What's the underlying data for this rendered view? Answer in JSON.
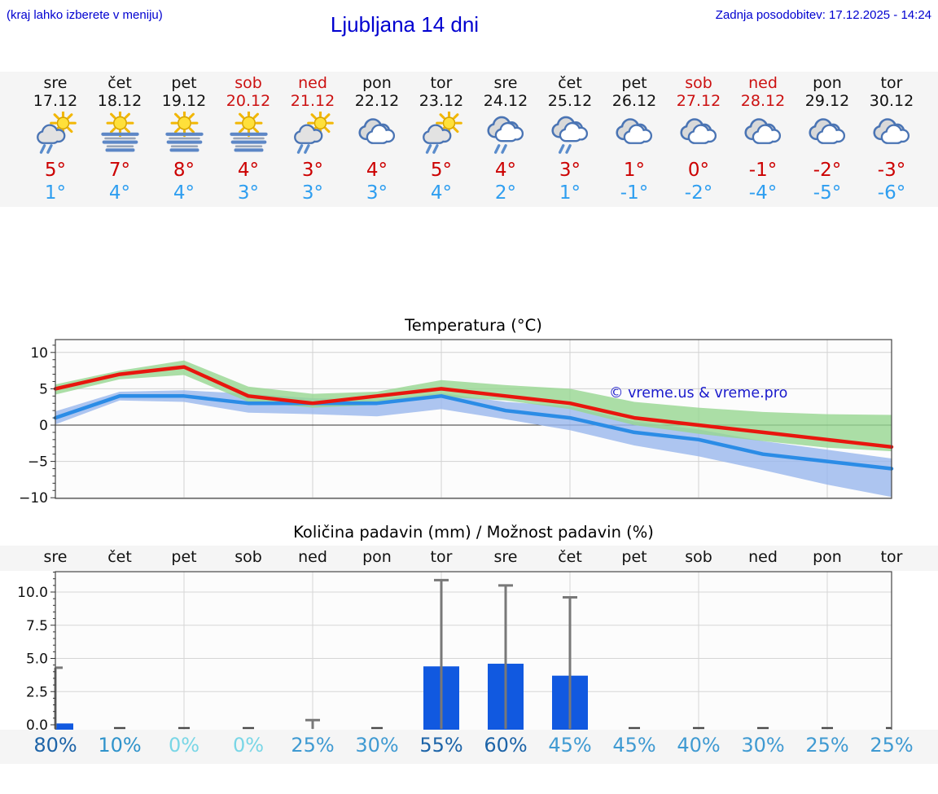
{
  "header": {
    "hint": "(kraj lahko izberete v meniju)",
    "title": "Ljubljana 14 dni",
    "updated": "Zadnja posodobitev: 17.12.2025 - 14:24"
  },
  "forecast_days": [
    {
      "name": "sre",
      "date": "17.12",
      "icon": "sun-rain-cloud",
      "hi": "5°",
      "lo": "1°",
      "holiday": false
    },
    {
      "name": "čet",
      "date": "18.12",
      "icon": "sun-fog",
      "hi": "7°",
      "lo": "4°",
      "holiday": false
    },
    {
      "name": "pet",
      "date": "19.12",
      "icon": "sun-fog",
      "hi": "8°",
      "lo": "4°",
      "holiday": false
    },
    {
      "name": "sob",
      "date": "20.12",
      "icon": "sun-fog",
      "hi": "4°",
      "lo": "3°",
      "holiday": true
    },
    {
      "name": "ned",
      "date": "21.12",
      "icon": "sun-rain-cloud",
      "hi": "3°",
      "lo": "3°",
      "holiday": true
    },
    {
      "name": "pon",
      "date": "22.12",
      "icon": "cloudy",
      "hi": "4°",
      "lo": "3°",
      "holiday": false
    },
    {
      "name": "tor",
      "date": "23.12",
      "icon": "sun-rain-cloud",
      "hi": "5°",
      "lo": "4°",
      "holiday": false
    },
    {
      "name": "sre",
      "date": "24.12",
      "icon": "cloud-rain",
      "hi": "4°",
      "lo": "2°",
      "holiday": false
    },
    {
      "name": "čet",
      "date": "25.12",
      "icon": "cloud-rain",
      "hi": "3°",
      "lo": "1°",
      "holiday": false
    },
    {
      "name": "pet",
      "date": "26.12",
      "icon": "cloudy",
      "hi": "1°",
      "lo": "-1°",
      "holiday": false
    },
    {
      "name": "sob",
      "date": "27.12",
      "icon": "cloudy",
      "hi": "0°",
      "lo": "-2°",
      "holiday": true
    },
    {
      "name": "ned",
      "date": "28.12",
      "icon": "cloudy",
      "hi": "-1°",
      "lo": "-4°",
      "holiday": true
    },
    {
      "name": "pon",
      "date": "29.12",
      "icon": "cloudy",
      "hi": "-2°",
      "lo": "-5°",
      "holiday": false
    },
    {
      "name": "tor",
      "date": "30.12",
      "icon": "cloudy",
      "hi": "-3°",
      "lo": "-6°",
      "holiday": false
    }
  ],
  "chart_data": [
    {
      "type": "line",
      "title": "Temperatura (°C)",
      "categories": [
        "17.12",
        "18.12",
        "19.12",
        "20.12",
        "21.12",
        "22.12",
        "23.12",
        "24.12",
        "25.12",
        "26.12",
        "27.12",
        "28.12",
        "29.12",
        "30.12"
      ],
      "ylim": [
        -10.5,
        11.8
      ],
      "yticks": [
        {
          "v": 10,
          "label": "10"
        },
        {
          "v": 5,
          "label": "5"
        },
        {
          "v": 0,
          "label": "0"
        },
        {
          "v": -5,
          "label": "−5"
        },
        {
          "v": -10,
          "label": "−10"
        }
      ],
      "grid": true,
      "annotation": "© vreme.us & vreme.pro",
      "series": [
        {
          "name": "max_temp",
          "color": "#e8160e",
          "band_color": "#96d690",
          "values": [
            5,
            7,
            8,
            4,
            3,
            4,
            5,
            4,
            3,
            1,
            0,
            -1,
            -2,
            -3
          ],
          "band_upper": [
            5.6,
            7.5,
            8.9,
            5.3,
            4.3,
            4.6,
            6.2,
            5.5,
            5.0,
            3.2,
            2.4,
            1.8,
            1.5,
            1.4
          ],
          "band_lower": [
            4.2,
            6.3,
            6.9,
            3.2,
            2.4,
            2.8,
            3.9,
            3.4,
            2.2,
            0.0,
            -1.2,
            -2.2,
            -3.1,
            -3.6
          ]
        },
        {
          "name": "min_temp",
          "color": "#2b8ce6",
          "band_color": "#98b6ec",
          "values": [
            1,
            4,
            4,
            3,
            3,
            3,
            4,
            2,
            1,
            -1,
            -2,
            -4,
            -5,
            -6
          ],
          "band_upper": [
            1.9,
            4.6,
            4.8,
            4.3,
            3.7,
            3.5,
            4.4,
            3.2,
            2.6,
            0.5,
            -0.6,
            -2.2,
            -3.4,
            -4.6
          ],
          "band_lower": [
            0.1,
            3.4,
            3.2,
            1.7,
            1.5,
            1.2,
            2.2,
            0.8,
            -0.7,
            -2.8,
            -4.3,
            -6.2,
            -8.2,
            -9.9
          ]
        }
      ]
    },
    {
      "type": "bar",
      "title": "Količina padavin (mm) / Možnost padavin (%)",
      "categories": [
        "sre",
        "čet",
        "pet",
        "sob",
        "ned",
        "pon",
        "tor",
        "sre",
        "čet",
        "pet",
        "sob",
        "ned",
        "pon",
        "tor"
      ],
      "values_mm": [
        0.1,
        0,
        0,
        0,
        0,
        0,
        4.4,
        4.6,
        3.7,
        0,
        0,
        0,
        0,
        0
      ],
      "whisker_max_mm": [
        4.3,
        0,
        0,
        0,
        0.35,
        0,
        10.9,
        10.5,
        9.6,
        0,
        0,
        0,
        0,
        0
      ],
      "probability_pct": [
        80,
        10,
        0,
        0,
        25,
        30,
        55,
        60,
        45,
        45,
        40,
        30,
        25,
        25
      ],
      "ylim": [
        -0.45,
        11.9
      ],
      "yticks": [
        {
          "v": 10,
          "label": "10.0"
        },
        {
          "v": 7.5,
          "label": "7.5"
        },
        {
          "v": 5,
          "label": "5.0"
        },
        {
          "v": 2.5,
          "label": "2.5"
        },
        {
          "v": 0,
          "label": "0.0"
        }
      ],
      "bar_color": "#1159e0",
      "whisker_color": "#787878"
    }
  ],
  "colors": {
    "header_text": "#0000d0",
    "hi_temp": "#cc0000",
    "lo_temp": "#2e9ef0",
    "holiday": "#cc1111",
    "pct_dark": "#1d64a8",
    "pct_med": "#3f9ad2",
    "pct_low": "#2f93cb",
    "pct_zero": "#79d6e6",
    "watermark": "#1a1acc"
  }
}
